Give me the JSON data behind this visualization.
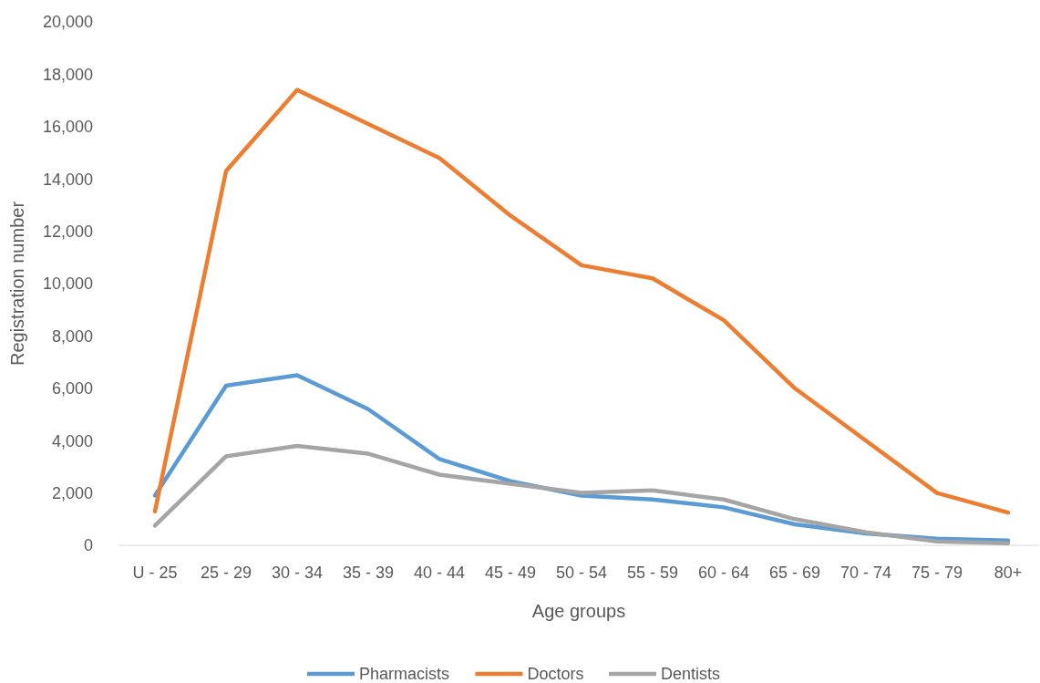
{
  "chart_data": {
    "type": "line",
    "xlabel": "Age groups",
    "ylabel": "Registration number",
    "categories": [
      "U - 25",
      "25 - 29",
      "30 - 34",
      "35 - 39",
      "40 - 44",
      "45 - 49",
      "50 - 54",
      "55 - 59",
      "60 - 64",
      "65 - 69",
      "70 - 74",
      "75 - 79",
      "80+"
    ],
    "series": [
      {
        "name": "Pharmacists",
        "color": "#5b9bd5",
        "values": [
          1900,
          6100,
          6500,
          5200,
          3300,
          2450,
          1900,
          1750,
          1450,
          800,
          450,
          250,
          180
        ]
      },
      {
        "name": "Doctors",
        "color": "#ed7d31",
        "values": [
          1300,
          14300,
          17400,
          16100,
          14800,
          12600,
          10700,
          10200,
          8600,
          6000,
          4000,
          2000,
          1250
        ]
      },
      {
        "name": "Dentists",
        "color": "#a5a5a5",
        "values": [
          750,
          3400,
          3800,
          3500,
          2700,
          2350,
          2000,
          2100,
          1750,
          1000,
          500,
          150,
          80
        ]
      }
    ],
    "ylim": [
      0,
      20000
    ],
    "yticks": [
      {
        "value": 0,
        "label": "0"
      },
      {
        "value": 2000,
        "label": "2,000"
      },
      {
        "value": 4000,
        "label": "4,000"
      },
      {
        "value": 6000,
        "label": "6,000"
      },
      {
        "value": 8000,
        "label": "8,000"
      },
      {
        "value": 10000,
        "label": "10,000"
      },
      {
        "value": 12000,
        "label": "12,000"
      },
      {
        "value": 14000,
        "label": "14,000"
      },
      {
        "value": 16000,
        "label": "16,000"
      },
      {
        "value": 18000,
        "label": "18,000"
      },
      {
        "value": 20000,
        "label": "20,000"
      }
    ],
    "grid": false,
    "legend": "bottom",
    "line_style": "solid",
    "marker": "none"
  }
}
